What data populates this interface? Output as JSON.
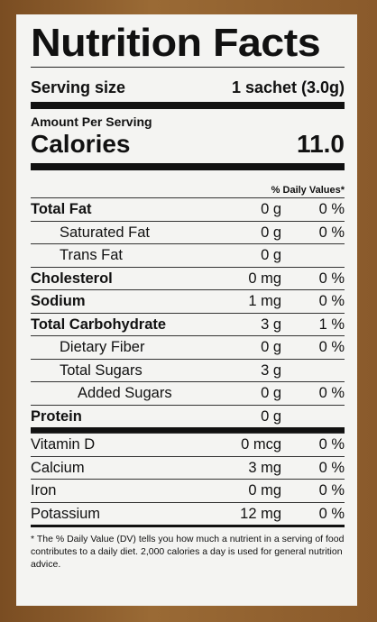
{
  "title": "Nutrition Facts",
  "serving": {
    "label": "Serving size",
    "value": "1 sachet (3.0g)"
  },
  "amount_per_serving": "Amount Per Serving",
  "calories": {
    "label": "Calories",
    "value": "11.0"
  },
  "dv_header": "% Daily Values*",
  "nutrients": [
    {
      "name": "Total Fat",
      "amount": "0 g",
      "dv": "0 %",
      "sub": [
        {
          "name": "Saturated Fat",
          "amount": "0 g",
          "dv": "0 %"
        },
        {
          "name": "Trans Fat",
          "amount": "0 g"
        }
      ]
    },
    {
      "name": "Cholesterol",
      "amount": "0 mg",
      "dv": "0 %"
    },
    {
      "name": "Sodium",
      "amount": "1 mg",
      "dv": "0 %"
    },
    {
      "name": "Total Carbohydrate",
      "amount": "3 g",
      "dv": "1 %",
      "sub": [
        {
          "name": "Dietary Fiber",
          "amount": "0 g",
          "dv": "0 %"
        },
        {
          "name": "Total Sugars",
          "amount": "3 g",
          "sub": [
            {
              "name": "Added Sugars",
              "amount": "0 g",
              "dv": "0 %"
            }
          ]
        }
      ]
    },
    {
      "name": "Protein",
      "amount": "0 g"
    }
  ],
  "vitamins": [
    {
      "name": "Vitamin D",
      "amount": "0 mcg",
      "dv": "0 %"
    },
    {
      "name": "Calcium",
      "amount": "3 mg",
      "dv": "0 %"
    },
    {
      "name": "Iron",
      "amount": "0 mg",
      "dv": "0 %"
    },
    {
      "name": "Potassium",
      "amount": "12 mg",
      "dv": "0 %"
    }
  ],
  "footnote": "* The % Daily Value (DV) tells you how much a nutrient in a serving of food contributes to a daily diet. 2,000 calories a day is used for general nutrition advice."
}
